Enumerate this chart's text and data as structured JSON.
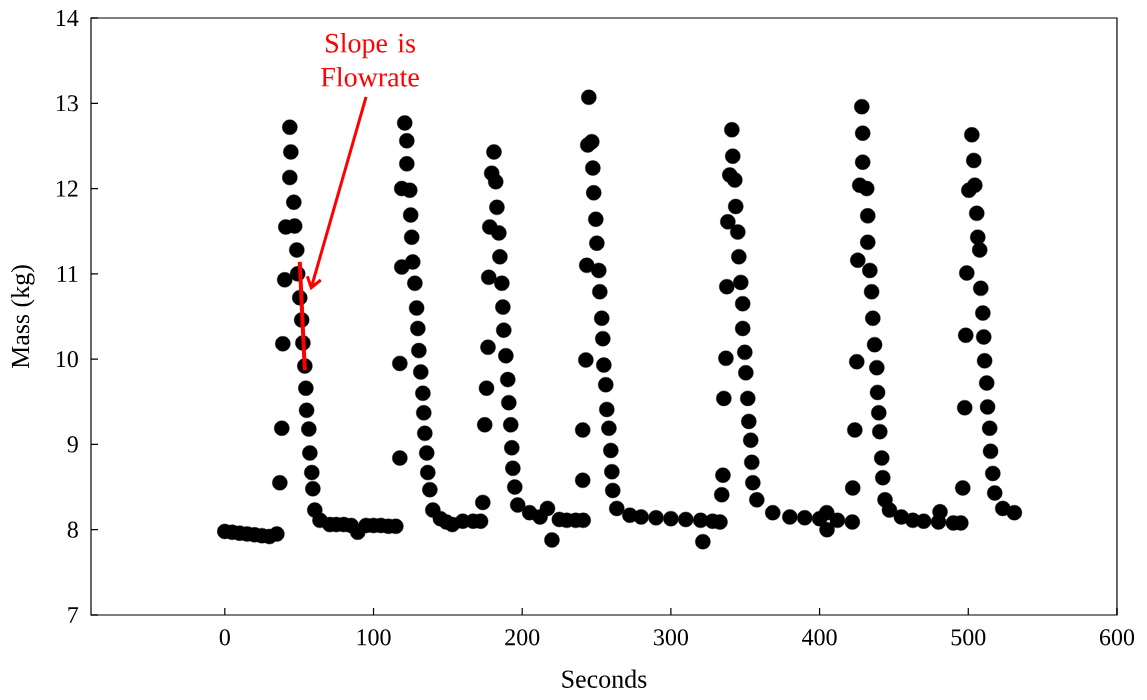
{
  "chart_data": {
    "type": "scatter",
    "xlabel": "Seconds",
    "ylabel": "Mass (kg)",
    "xlim": [
      -90,
      600
    ],
    "ylim": [
      7,
      14
    ],
    "xticks": [
      0,
      100,
      200,
      300,
      400,
      500,
      600
    ],
    "yticks": [
      7,
      8,
      9,
      10,
      11,
      12,
      13,
      14
    ],
    "marker": "circle",
    "annotations": [
      "Slope is Flowrate"
    ],
    "series": [
      {
        "color": "#000000",
        "x": [
          0,
          5,
          10,
          15,
          20,
          25,
          30,
          35,
          37,
          38.3,
          39,
          40.3,
          41,
          43.7,
          43.7,
          44.4,
          46.4,
          47,
          48.4,
          49,
          50.4,
          51.7,
          52.5,
          53.8,
          54.5,
          55,
          56.5,
          57.2,
          58.5,
          59.2,
          60.5,
          64,
          70.6,
          75,
          80,
          85,
          89.4,
          95,
          100,
          105,
          110,
          115,
          117.7,
          117.7,
          119,
          121,
          122.4,
          122.4,
          119,
          124.4,
          125,
          125.7,
          126.4,
          127.8,
          129,
          129.8,
          130.5,
          131.8,
          133.2,
          133.8,
          134.5,
          135.8,
          136.5,
          137.9,
          139.9,
          145,
          149,
          153,
          160,
          167,
          172,
          173.5,
          174.8,
          176,
          177,
          177.5,
          178.2,
          179.5,
          181,
          182.2,
          183,
          184.3,
          185,
          186.3,
          187,
          187.6,
          189,
          190.3,
          191,
          192.3,
          193,
          193.7,
          195,
          197,
          205,
          212,
          217,
          220,
          225,
          230,
          236,
          241,
          240.7,
          240.7,
          242.8,
          243.4,
          244.8,
          244.1,
          246.8,
          247.5,
          248.1,
          249.5,
          250.2,
          251.5,
          252.2,
          253.5,
          254.2,
          254.9,
          256.2,
          256.9,
          258.3,
          259.6,
          260.3,
          260.9,
          263.6,
          272.4,
          280,
          290,
          300,
          310,
          321.5,
          320,
          328,
          333,
          334.2,
          335,
          335.6,
          337,
          337.6,
          341,
          341.6,
          339.6,
          343,
          343.6,
          338.3,
          345,
          345.7,
          347,
          348.3,
          348.3,
          349.7,
          350.4,
          351.7,
          352.4,
          353.7,
          354.4,
          355.1,
          357.8,
          368.5,
          380,
          390,
          400,
          404.8,
          405,
          412,
          422,
          422.3,
          423.7,
          425,
          425.7,
          428.4,
          429,
          429,
          427,
          431.7,
          432.4,
          432.4,
          433.8,
          435,
          435.8,
          437,
          438.5,
          439,
          439.8,
          440.5,
          441.8,
          442.5,
          444,
          447,
          455,
          462.7,
          470,
          481,
          480,
          490,
          495,
          496.3,
          497.6,
          498.3,
          499,
          502.4,
          503.7,
          500.4,
          504.4,
          505.7,
          506.4,
          507.7,
          508.4,
          509.8,
          510.4,
          511,
          512.4,
          513,
          514.4,
          515,
          516.5,
          517.8,
          523.2,
          531
        ],
        "values": [
          7.98,
          7.97,
          7.96,
          7.95,
          7.94,
          7.93,
          7.92,
          7.95,
          8.55,
          9.19,
          10.18,
          10.93,
          11.55,
          12.13,
          12.72,
          12.43,
          11.84,
          11.56,
          11.28,
          11.0,
          10.72,
          10.46,
          10.19,
          9.92,
          9.66,
          9.4,
          9.18,
          8.9,
          8.67,
          8.48,
          8.23,
          8.11,
          8.06,
          8.06,
          8.06,
          8.05,
          7.97,
          8.05,
          8.05,
          8.05,
          8.04,
          8.04,
          8.84,
          9.95,
          11.08,
          12.77,
          12.56,
          12.29,
          12.0,
          11.98,
          11.69,
          11.43,
          11.14,
          10.89,
          10.6,
          10.36,
          10.1,
          9.85,
          9.6,
          9.37,
          9.13,
          8.9,
          8.67,
          8.47,
          8.23,
          8.13,
          8.09,
          8.06,
          8.1,
          8.1,
          8.1,
          8.32,
          9.23,
          9.66,
          10.14,
          10.96,
          11.55,
          12.18,
          12.43,
          12.08,
          11.78,
          11.48,
          11.2,
          10.89,
          10.61,
          10.34,
          10.04,
          9.76,
          9.49,
          9.23,
          8.96,
          8.72,
          8.5,
          8.29,
          8.2,
          8.15,
          8.25,
          7.88,
          8.12,
          8.11,
          8.11,
          8.11,
          8.58,
          9.17,
          9.99,
          11.1,
          13.07,
          12.51,
          12.55,
          12.24,
          11.95,
          11.64,
          11.36,
          11.04,
          10.79,
          10.48,
          10.24,
          9.93,
          9.7,
          9.41,
          9.19,
          8.93,
          8.68,
          8.46,
          8.25,
          8.17,
          8.15,
          8.14,
          8.13,
          8.12,
          7.86,
          8.11,
          8.1,
          8.09,
          8.41,
          8.64,
          9.54,
          10.01,
          10.85,
          12.69,
          12.38,
          12.16,
          12.1,
          11.79,
          11.61,
          11.49,
          11.2,
          10.9,
          10.65,
          10.36,
          10.08,
          9.84,
          9.54,
          9.27,
          9.05,
          8.79,
          8.55,
          8.35,
          8.2,
          8.15,
          8.14,
          8.13,
          8.2,
          8.0,
          8.11,
          8.09,
          8.49,
          9.17,
          9.97,
          11.16,
          12.96,
          12.65,
          12.31,
          12.04,
          12.0,
          11.68,
          11.37,
          11.04,
          10.79,
          10.48,
          10.17,
          9.9,
          9.61,
          9.37,
          9.15,
          8.84,
          8.61,
          8.35,
          8.23,
          8.15,
          8.11,
          8.1,
          8.21,
          8.09,
          8.08,
          8.08,
          8.49,
          9.43,
          10.28,
          11.01,
          12.63,
          12.33,
          11.98,
          12.04,
          11.71,
          11.43,
          11.28,
          10.83,
          10.54,
          10.26,
          9.98,
          9.72,
          9.44,
          9.19,
          8.92,
          8.66,
          8.43,
          8.25,
          8.2
        ]
      },
      {
        "type": "line",
        "marker": "none",
        "color": "#ff0000",
        "x": [
          50.4,
          53.8
        ],
        "values": [
          11.14,
          9.87
        ]
      }
    ]
  }
}
